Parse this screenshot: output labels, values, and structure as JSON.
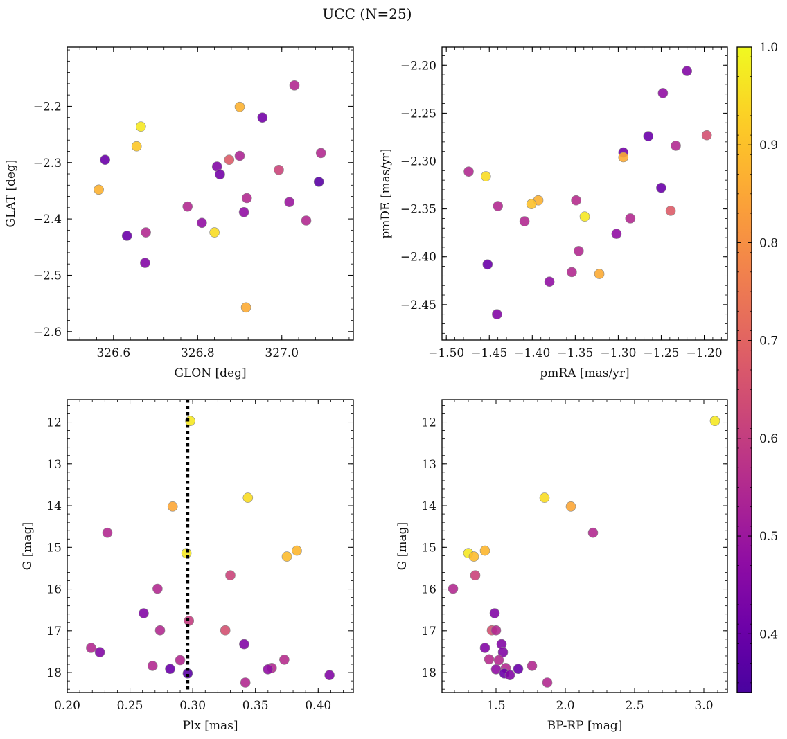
{
  "title": "UCC (N=25)",
  "colormap": {
    "name": "plasma",
    "vmin": 0.34,
    "vmax": 1.0,
    "ticks": [
      "1.0",
      "0.9",
      "0.8",
      "0.7",
      "0.6",
      "0.5",
      "0.4"
    ],
    "tick_values": [
      1.0,
      0.9,
      0.8,
      0.7,
      0.6,
      0.5,
      0.4
    ]
  },
  "marker_edge_color": "#888888",
  "vline_color": "#000000",
  "chart_data": [
    {
      "type": "scatter",
      "id": "pos",
      "xlabel": "GLON [deg]",
      "ylabel": "GLAT [deg]",
      "xlim": [
        326.49,
        327.17
      ],
      "ylim": [
        -2.615,
        -2.095
      ],
      "y_inverted": false,
      "xticks": [
        326.6,
        326.8,
        327.0
      ],
      "xtick_labels": [
        "326.6",
        "326.8",
        "327.0"
      ],
      "yticks": [
        -2.2,
        -2.3,
        -2.4,
        -2.5,
        -2.6
      ],
      "ytick_labels": [
        "−2.2",
        "−2.3",
        "−2.4",
        "−2.5",
        "−2.6"
      ],
      "points": [
        {
          "x": 327.03,
          "y": -2.163,
          "c": 0.55
        },
        {
          "x": 326.9,
          "y": -2.201,
          "c": 0.87
        },
        {
          "x": 326.954,
          "y": -2.22,
          "c": 0.42
        },
        {
          "x": 326.665,
          "y": -2.236,
          "c": 0.97
        },
        {
          "x": 326.655,
          "y": -2.271,
          "c": 0.91
        },
        {
          "x": 327.093,
          "y": -2.283,
          "c": 0.55
        },
        {
          "x": 326.9,
          "y": -2.288,
          "c": 0.54
        },
        {
          "x": 326.875,
          "y": -2.295,
          "c": 0.68
        },
        {
          "x": 326.58,
          "y": -2.295,
          "c": 0.4
        },
        {
          "x": 326.846,
          "y": -2.307,
          "c": 0.45
        },
        {
          "x": 326.993,
          "y": -2.313,
          "c": 0.62
        },
        {
          "x": 326.853,
          "y": -2.321,
          "c": 0.42
        },
        {
          "x": 327.088,
          "y": -2.334,
          "c": 0.37
        },
        {
          "x": 326.565,
          "y": -2.348,
          "c": 0.87
        },
        {
          "x": 326.917,
          "y": -2.363,
          "c": 0.55
        },
        {
          "x": 327.018,
          "y": -2.37,
          "c": 0.5
        },
        {
          "x": 326.776,
          "y": -2.378,
          "c": 0.55
        },
        {
          "x": 326.91,
          "y": -2.388,
          "c": 0.48
        },
        {
          "x": 327.058,
          "y": -2.403,
          "c": 0.55
        },
        {
          "x": 326.81,
          "y": -2.407,
          "c": 0.48
        },
        {
          "x": 326.84,
          "y": -2.424,
          "c": 0.95
        },
        {
          "x": 326.677,
          "y": -2.424,
          "c": 0.55
        },
        {
          "x": 326.632,
          "y": -2.43,
          "c": 0.4
        },
        {
          "x": 326.675,
          "y": -2.478,
          "c": 0.45
        },
        {
          "x": 326.915,
          "y": -2.557,
          "c": 0.86
        }
      ]
    },
    {
      "type": "scatter",
      "id": "pm",
      "xlabel": "pmRA [mas/yr]",
      "ylabel": "pmDE [mas/yr]",
      "xlim": [
        -1.505,
        -1.173
      ],
      "ylim": [
        -2.487,
        -2.181
      ],
      "y_inverted": false,
      "xticks": [
        -1.5,
        -1.45,
        -1.4,
        -1.35,
        -1.3,
        -1.25,
        -1.2
      ],
      "xtick_labels": [
        "−1.50",
        "−1.45",
        "−1.40",
        "−1.35",
        "−1.30",
        "−1.25",
        "−1.20"
      ],
      "yticks": [
        -2.2,
        -2.25,
        -2.3,
        -2.35,
        -2.4,
        -2.45
      ],
      "ytick_labels": [
        "−2.20",
        "−2.25",
        "−2.30",
        "−2.35",
        "−2.40",
        "−2.45"
      ],
      "points": [
        {
          "x": -1.22,
          "y": -2.206,
          "c": 0.45
        },
        {
          "x": -1.248,
          "y": -2.229,
          "c": 0.48
        },
        {
          "x": -1.265,
          "y": -2.274,
          "c": 0.4
        },
        {
          "x": -1.197,
          "y": -2.273,
          "c": 0.65
        },
        {
          "x": -1.233,
          "y": -2.284,
          "c": 0.55
        },
        {
          "x": -1.294,
          "y": -2.291,
          "c": 0.42
        },
        {
          "x": -1.294,
          "y": -2.296,
          "c": 0.86
        },
        {
          "x": -1.474,
          "y": -2.311,
          "c": 0.55
        },
        {
          "x": -1.454,
          "y": -2.316,
          "c": 0.95
        },
        {
          "x": -1.25,
          "y": -2.328,
          "c": 0.4
        },
        {
          "x": -1.349,
          "y": -2.341,
          "c": 0.56
        },
        {
          "x": -1.393,
          "y": -2.341,
          "c": 0.87
        },
        {
          "x": -1.401,
          "y": -2.345,
          "c": 0.9
        },
        {
          "x": -1.44,
          "y": -2.347,
          "c": 0.55
        },
        {
          "x": -1.239,
          "y": -2.352,
          "c": 0.68
        },
        {
          "x": -1.339,
          "y": -2.358,
          "c": 0.97
        },
        {
          "x": -1.286,
          "y": -2.36,
          "c": 0.55
        },
        {
          "x": -1.409,
          "y": -2.363,
          "c": 0.55
        },
        {
          "x": -1.302,
          "y": -2.376,
          "c": 0.48
        },
        {
          "x": -1.346,
          "y": -2.394,
          "c": 0.55
        },
        {
          "x": -1.452,
          "y": -2.408,
          "c": 0.4
        },
        {
          "x": -1.354,
          "y": -2.416,
          "c": 0.55
        },
        {
          "x": -1.322,
          "y": -2.418,
          "c": 0.86
        },
        {
          "x": -1.38,
          "y": -2.426,
          "c": 0.48
        },
        {
          "x": -1.441,
          "y": -2.46,
          "c": 0.45
        }
      ]
    },
    {
      "type": "scatter",
      "id": "plx",
      "xlabel": "Plx [mas]",
      "ylabel": "G [mag]",
      "xlim": [
        0.2,
        0.428
      ],
      "ylim": [
        11.46,
        18.48
      ],
      "y_inverted": true,
      "xticks": [
        0.2,
        0.25,
        0.3,
        0.35,
        0.4
      ],
      "xtick_labels": [
        "0.20",
        "0.25",
        "0.30",
        "0.35",
        "0.40"
      ],
      "yticks": [
        12,
        13,
        14,
        15,
        16,
        17,
        18
      ],
      "ytick_labels": [
        "12",
        "13",
        "14",
        "15",
        "16",
        "17",
        "18"
      ],
      "vline_x": 0.296,
      "points": [
        {
          "x": 0.298,
          "y": 11.97,
          "c": 0.97
        },
        {
          "x": 0.344,
          "y": 13.81,
          "c": 0.95
        },
        {
          "x": 0.284,
          "y": 14.02,
          "c": 0.85
        },
        {
          "x": 0.232,
          "y": 14.65,
          "c": 0.55
        },
        {
          "x": 0.383,
          "y": 15.08,
          "c": 0.88
        },
        {
          "x": 0.295,
          "y": 15.14,
          "c": 0.97
        },
        {
          "x": 0.375,
          "y": 15.22,
          "c": 0.89
        },
        {
          "x": 0.33,
          "y": 15.67,
          "c": 0.62
        },
        {
          "x": 0.272,
          "y": 15.99,
          "c": 0.55
        },
        {
          "x": 0.261,
          "y": 16.58,
          "c": 0.45
        },
        {
          "x": 0.297,
          "y": 16.76,
          "c": 0.6
        },
        {
          "x": 0.274,
          "y": 16.99,
          "c": 0.55
        },
        {
          "x": 0.326,
          "y": 16.99,
          "c": 0.65
        },
        {
          "x": 0.341,
          "y": 17.32,
          "c": 0.45
        },
        {
          "x": 0.219,
          "y": 17.41,
          "c": 0.55
        },
        {
          "x": 0.226,
          "y": 17.51,
          "c": 0.45
        },
        {
          "x": 0.373,
          "y": 17.69,
          "c": 0.56
        },
        {
          "x": 0.29,
          "y": 17.7,
          "c": 0.55
        },
        {
          "x": 0.268,
          "y": 17.84,
          "c": 0.55
        },
        {
          "x": 0.363,
          "y": 17.89,
          "c": 0.55
        },
        {
          "x": 0.282,
          "y": 17.91,
          "c": 0.4
        },
        {
          "x": 0.36,
          "y": 17.92,
          "c": 0.48
        },
        {
          "x": 0.296,
          "y": 18.02,
          "c": 0.37
        },
        {
          "x": 0.409,
          "y": 18.06,
          "c": 0.45
        },
        {
          "x": 0.342,
          "y": 18.24,
          "c": 0.55
        }
      ]
    },
    {
      "type": "scatter",
      "id": "cmd",
      "xlabel": "BP-RP [mag]",
      "ylabel": "G [mag]",
      "xlim": [
        1.11,
        3.17
      ],
      "ylim": [
        11.46,
        18.48
      ],
      "y_inverted": true,
      "xticks": [
        1.5,
        2.0,
        2.5,
        3.0
      ],
      "xtick_labels": [
        "1.5",
        "2.0",
        "2.5",
        "3.0"
      ],
      "yticks": [
        12,
        13,
        14,
        15,
        16,
        17,
        18
      ],
      "ytick_labels": [
        "12",
        "13",
        "14",
        "15",
        "16",
        "17",
        "18"
      ],
      "points": [
        {
          "x": 3.08,
          "y": 11.97,
          "c": 0.97
        },
        {
          "x": 1.85,
          "y": 13.81,
          "c": 0.95
        },
        {
          "x": 2.04,
          "y": 14.02,
          "c": 0.85
        },
        {
          "x": 2.2,
          "y": 14.65,
          "c": 0.55
        },
        {
          "x": 1.42,
          "y": 15.08,
          "c": 0.88
        },
        {
          "x": 1.3,
          "y": 15.14,
          "c": 0.97
        },
        {
          "x": 1.34,
          "y": 15.22,
          "c": 0.89
        },
        {
          "x": 1.35,
          "y": 15.67,
          "c": 0.62
        },
        {
          "x": 1.19,
          "y": 15.99,
          "c": 0.55
        },
        {
          "x": 1.49,
          "y": 16.58,
          "c": 0.45
        },
        {
          "x": 1.47,
          "y": 16.99,
          "c": 0.65
        },
        {
          "x": 1.5,
          "y": 16.99,
          "c": 0.55
        },
        {
          "x": 1.54,
          "y": 17.32,
          "c": 0.45
        },
        {
          "x": 1.42,
          "y": 17.41,
          "c": 0.45
        },
        {
          "x": 1.55,
          "y": 17.51,
          "c": 0.45
        },
        {
          "x": 1.45,
          "y": 17.68,
          "c": 0.56
        },
        {
          "x": 1.52,
          "y": 17.7,
          "c": 0.55
        },
        {
          "x": 1.76,
          "y": 17.84,
          "c": 0.55
        },
        {
          "x": 1.57,
          "y": 17.89,
          "c": 0.55
        },
        {
          "x": 1.66,
          "y": 17.91,
          "c": 0.4
        },
        {
          "x": 1.5,
          "y": 17.92,
          "c": 0.48
        },
        {
          "x": 1.56,
          "y": 18.02,
          "c": 0.4
        },
        {
          "x": 1.6,
          "y": 18.06,
          "c": 0.45
        },
        {
          "x": 1.87,
          "y": 18.24,
          "c": 0.55
        }
      ]
    }
  ]
}
